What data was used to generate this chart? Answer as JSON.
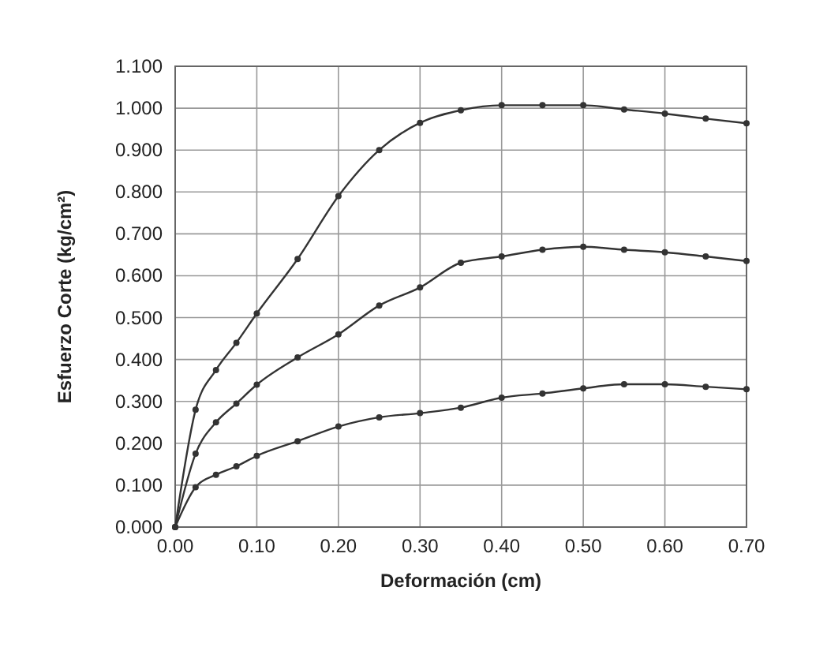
{
  "chart_data": {
    "type": "line",
    "xlabel": "Deformación (cm)",
    "ylabel": "Esfuerzo Corte (kg/cm²)",
    "x": [
      0,
      0.025,
      0.05,
      0.075,
      0.1,
      0.15,
      0.2,
      0.25,
      0.3,
      0.35,
      0.4,
      0.45,
      0.5,
      0.55,
      0.6,
      0.65,
      0.7
    ],
    "series": [
      {
        "color": "#333333",
        "values": [
          0,
          0.28,
          0.375,
          0.44,
          0.51,
          0.64,
          0.79,
          0.9,
          0.965,
          0.995,
          1.007,
          1.007,
          1.007,
          0.997,
          0.987,
          0.975,
          0.964
        ]
      },
      {
        "color": "#333333",
        "values": [
          0,
          0.175,
          0.25,
          0.295,
          0.34,
          0.405,
          0.46,
          0.529,
          0.572,
          0.631,
          0.646,
          0.662,
          0.669,
          0.662,
          0.656,
          0.646,
          0.635
        ]
      },
      {
        "color": "#333333",
        "values": [
          0,
          0.095,
          0.125,
          0.145,
          0.17,
          0.205,
          0.24,
          0.262,
          0.272,
          0.285,
          0.309,
          0.319,
          0.331,
          0.341,
          0.341,
          0.335,
          0.329
        ]
      }
    ],
    "xlim": [
      0,
      0.7
    ],
    "xticks": [
      {
        "value": 0,
        "label": "0.00"
      },
      {
        "value": 0.1,
        "label": "0.10"
      },
      {
        "value": 0.2,
        "label": "0.20"
      },
      {
        "value": 0.3,
        "label": "0.30"
      },
      {
        "value": 0.4,
        "label": "0.40"
      },
      {
        "value": 0.5,
        "label": "0.50"
      },
      {
        "value": 0.6,
        "label": "0.60"
      },
      {
        "value": 0.7,
        "label": "0.70"
      }
    ],
    "ylim": [
      0,
      1.1
    ],
    "yticks": [
      {
        "value": 0,
        "label": "0.000"
      },
      {
        "value": 0.1,
        "label": "0.100"
      },
      {
        "value": 0.2,
        "label": "0.200"
      },
      {
        "value": 0.3,
        "label": "0.300"
      },
      {
        "value": 0.4,
        "label": "0.400"
      },
      {
        "value": 0.5,
        "label": "0.500"
      },
      {
        "value": 0.6,
        "label": "0.600"
      },
      {
        "value": 0.7,
        "label": "0.700"
      },
      {
        "value": 0.8,
        "label": "0.800"
      },
      {
        "value": 0.9,
        "label": "0.900"
      },
      {
        "value": 1,
        "label": "1.000"
      },
      {
        "value": 1.1,
        "label": "1.100"
      }
    ],
    "grid": true,
    "marker": "circle",
    "line_style": "solid"
  }
}
